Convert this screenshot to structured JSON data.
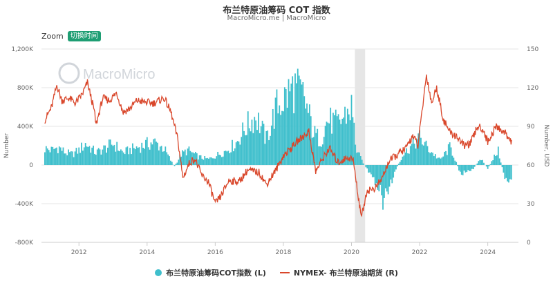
{
  "title": "布兰特原油筹码 COT 指数",
  "subtitle": "MacroMicro.me | MacroMicro",
  "zoom": {
    "label": "Zoom",
    "button": "切换时间"
  },
  "watermark": "MacroMicro",
  "colors": {
    "bars": "#3fbfcc",
    "line": "#d9472b",
    "shade": "#e6e6e6",
    "grid": "#e6e6e6",
    "accent": "#1e9e73"
  },
  "chart_data": {
    "type": "bar+line",
    "left_axis": {
      "label": "Number",
      "range": [
        -800000,
        1200000
      ],
      "ticks": [
        -800000,
        -400000,
        0,
        400000,
        800000,
        1200000
      ],
      "tick_labels": [
        "-800K",
        "-400K",
        "0",
        "400K",
        "800K",
        "1,200K"
      ]
    },
    "right_axis": {
      "label": "Number, USD",
      "range": [
        0,
        150
      ],
      "ticks": [
        0,
        30,
        60,
        90,
        120,
        150
      ],
      "tick_labels": [
        "0",
        "30",
        "60",
        "90",
        "120",
        "150"
      ]
    },
    "x_axis": {
      "range": [
        2010.9,
        2024.9
      ],
      "ticks": [
        2012,
        2014,
        2016,
        2018,
        2020,
        2022,
        2024
      ],
      "tick_labels": [
        "2012",
        "2014",
        "2016",
        "2018",
        "2020",
        "2022",
        "2024"
      ]
    },
    "shaded_region": [
      2020.1,
      2020.4
    ],
    "series": [
      {
        "name": "布兰特原油筹码COT指数 (L)",
        "type": "bar",
        "axis": "left",
        "points": [
          [
            2011.0,
            200000
          ],
          [
            2011.2,
            180000
          ],
          [
            2011.4,
            220000
          ],
          [
            2011.6,
            150000
          ],
          [
            2011.8,
            130000
          ],
          [
            2012.0,
            180000
          ],
          [
            2012.2,
            260000
          ],
          [
            2012.5,
            150000
          ],
          [
            2012.8,
            210000
          ],
          [
            2013.0,
            260000
          ],
          [
            2013.3,
            150000
          ],
          [
            2013.6,
            200000
          ],
          [
            2013.9,
            240000
          ],
          [
            2014.2,
            280000
          ],
          [
            2014.5,
            200000
          ],
          [
            2014.8,
            -20000
          ],
          [
            2015.0,
            130000
          ],
          [
            2015.2,
            180000
          ],
          [
            2015.5,
            100000
          ],
          [
            2015.8,
            70000
          ],
          [
            2016.0,
            110000
          ],
          [
            2016.3,
            170000
          ],
          [
            2016.6,
            260000
          ],
          [
            2016.9,
            460000
          ],
          [
            2017.2,
            600000
          ],
          [
            2017.5,
            310000
          ],
          [
            2017.8,
            700000
          ],
          [
            2018.1,
            840000
          ],
          [
            2018.3,
            950000
          ],
          [
            2018.6,
            820000
          ],
          [
            2018.9,
            380000
          ],
          [
            2019.1,
            300000
          ],
          [
            2019.3,
            550000
          ],
          [
            2019.6,
            490000
          ],
          [
            2019.8,
            600000
          ],
          [
            2020.0,
            700000
          ],
          [
            2020.15,
            180000
          ],
          [
            2020.3,
            60000
          ],
          [
            2020.5,
            -80000
          ],
          [
            2020.7,
            -250000
          ],
          [
            2020.9,
            -420000
          ],
          [
            2021.1,
            -300000
          ],
          [
            2021.3,
            -60000
          ],
          [
            2021.5,
            120000
          ],
          [
            2021.8,
            250000
          ],
          [
            2022.0,
            330000
          ],
          [
            2022.3,
            180000
          ],
          [
            2022.6,
            60000
          ],
          [
            2022.9,
            220000
          ],
          [
            2023.2,
            -100000
          ],
          [
            2023.5,
            -80000
          ],
          [
            2023.8,
            80000
          ],
          [
            2024.0,
            -50000
          ],
          [
            2024.3,
            180000
          ],
          [
            2024.5,
            -150000
          ],
          [
            2024.7,
            -200000
          ]
        ]
      },
      {
        "name": "NYMEX- 布兰特原油期货 (R)",
        "type": "line",
        "axis": "right",
        "points": [
          [
            2011.0,
            95
          ],
          [
            2011.2,
            105
          ],
          [
            2011.35,
            122
          ],
          [
            2011.5,
            110
          ],
          [
            2011.7,
            112
          ],
          [
            2011.9,
            108
          ],
          [
            2012.1,
            115
          ],
          [
            2012.25,
            124
          ],
          [
            2012.45,
            102
          ],
          [
            2012.5,
            91
          ],
          [
            2012.7,
            112
          ],
          [
            2012.9,
            110
          ],
          [
            2013.1,
            116
          ],
          [
            2013.3,
            101
          ],
          [
            2013.5,
            104
          ],
          [
            2013.7,
            110
          ],
          [
            2013.9,
            109
          ],
          [
            2014.2,
            108
          ],
          [
            2014.5,
            112
          ],
          [
            2014.7,
            101
          ],
          [
            2014.9,
            80
          ],
          [
            2015.05,
            50
          ],
          [
            2015.25,
            62
          ],
          [
            2015.4,
            65
          ],
          [
            2015.6,
            52
          ],
          [
            2015.8,
            47
          ],
          [
            2016.0,
            30
          ],
          [
            2016.15,
            35
          ],
          [
            2016.4,
            48
          ],
          [
            2016.7,
            47
          ],
          [
            2016.95,
            56
          ],
          [
            2017.3,
            54
          ],
          [
            2017.5,
            45
          ],
          [
            2017.8,
            57
          ],
          [
            2018.0,
            67
          ],
          [
            2018.4,
            78
          ],
          [
            2018.75,
            86
          ],
          [
            2018.95,
            55
          ],
          [
            2019.2,
            67
          ],
          [
            2019.35,
            73
          ],
          [
            2019.6,
            62
          ],
          [
            2019.9,
            66
          ],
          [
            2020.05,
            64
          ],
          [
            2020.2,
            35
          ],
          [
            2020.3,
            20
          ],
          [
            2020.45,
            40
          ],
          [
            2020.7,
            42
          ],
          [
            2020.9,
            50
          ],
          [
            2021.1,
            63
          ],
          [
            2021.35,
            68
          ],
          [
            2021.6,
            73
          ],
          [
            2021.8,
            83
          ],
          [
            2021.95,
            75
          ],
          [
            2022.2,
            130
          ],
          [
            2022.35,
            108
          ],
          [
            2022.5,
            120
          ],
          [
            2022.7,
            95
          ],
          [
            2022.9,
            85
          ],
          [
            2023.1,
            82
          ],
          [
            2023.3,
            75
          ],
          [
            2023.5,
            77
          ],
          [
            2023.7,
            90
          ],
          [
            2023.85,
            88
          ],
          [
            2024.0,
            78
          ],
          [
            2024.25,
            90
          ],
          [
            2024.5,
            85
          ],
          [
            2024.6,
            82
          ],
          [
            2024.7,
            78
          ]
        ]
      }
    ],
    "legend_position": "bottom"
  }
}
